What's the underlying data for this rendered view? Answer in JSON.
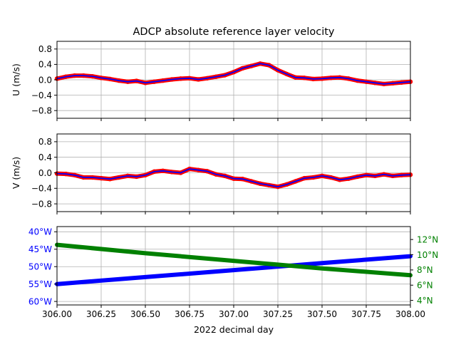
{
  "title": "ADCP absolute reference layer velocity",
  "xlabel": "2022 decimal day",
  "colors": {
    "raw": "#ff0000",
    "smooth": "#0000ff",
    "lon": "#0000ff",
    "lat": "#008000",
    "grid": "#b0b0b0",
    "axis": "#000000"
  },
  "chart_data": [
    {
      "type": "line",
      "panel": "u",
      "ylabel": "U (m/s)",
      "ylim": [
        -1.0,
        1.0
      ],
      "yticks": [
        -0.8,
        -0.4,
        0.0,
        0.4,
        0.8
      ],
      "ytick_labels": [
        "−0.8",
        "−0.4",
        "0.0",
        "0.4",
        "0.8"
      ],
      "xlim": [
        306.0,
        308.0
      ],
      "xticks": [
        306.0,
        306.25,
        306.5,
        306.75,
        307.0,
        307.25,
        307.5,
        307.75,
        308.0
      ],
      "grid": true,
      "series": [
        {
          "role": "raw",
          "style": "thick-red-markers",
          "x": [
            306.0,
            306.05,
            306.1,
            306.15,
            306.2,
            306.25,
            306.3,
            306.35,
            306.4,
            306.45,
            306.5,
            306.55,
            306.6,
            306.65,
            306.7,
            306.75,
            306.8,
            306.85,
            306.9,
            306.95,
            307.0,
            307.05,
            307.1,
            307.15,
            307.2,
            307.25,
            307.3,
            307.35,
            307.4,
            307.45,
            307.5,
            307.55,
            307.6,
            307.65,
            307.7,
            307.75,
            307.8,
            307.85,
            307.9,
            307.95,
            308.0
          ],
          "y": [
            0.03,
            0.08,
            0.11,
            0.11,
            0.09,
            0.05,
            0.02,
            -0.02,
            -0.05,
            -0.03,
            -0.08,
            -0.05,
            -0.02,
            0.01,
            0.03,
            0.04,
            0.01,
            0.04,
            0.08,
            0.12,
            0.2,
            0.3,
            0.36,
            0.42,
            0.38,
            0.25,
            0.15,
            0.06,
            0.05,
            0.02,
            0.03,
            0.05,
            0.06,
            0.03,
            -0.02,
            -0.05,
            -0.08,
            -0.11,
            -0.09,
            -0.07,
            -0.05
          ]
        },
        {
          "role": "smoothed",
          "style": "thin-blue-line",
          "x": [
            306.0,
            306.05,
            306.1,
            306.15,
            306.2,
            306.25,
            306.3,
            306.35,
            306.4,
            306.45,
            306.5,
            306.55,
            306.6,
            306.65,
            306.7,
            306.75,
            306.8,
            306.85,
            306.9,
            306.95,
            307.0,
            307.05,
            307.1,
            307.15,
            307.2,
            307.25,
            307.3,
            307.35,
            307.4,
            307.45,
            307.5,
            307.55,
            307.6,
            307.65,
            307.7,
            307.75,
            307.8,
            307.85,
            307.9,
            307.95,
            308.0
          ],
          "y": [
            0.03,
            0.08,
            0.11,
            0.11,
            0.09,
            0.05,
            0.02,
            -0.02,
            -0.05,
            -0.03,
            -0.08,
            -0.05,
            -0.02,
            0.01,
            0.03,
            0.04,
            0.01,
            0.04,
            0.08,
            0.12,
            0.2,
            0.3,
            0.36,
            0.42,
            0.38,
            0.25,
            0.15,
            0.06,
            0.05,
            0.02,
            0.03,
            0.05,
            0.06,
            0.03,
            -0.02,
            -0.05,
            -0.08,
            -0.11,
            -0.09,
            -0.07,
            -0.05
          ]
        }
      ]
    },
    {
      "type": "line",
      "panel": "v",
      "ylabel": "V (m/s)",
      "ylim": [
        -1.0,
        1.0
      ],
      "yticks": [
        -0.8,
        -0.4,
        0.0,
        0.4,
        0.8
      ],
      "ytick_labels": [
        "−0.8",
        "−0.4",
        "0.0",
        "0.4",
        "0.8"
      ],
      "xlim": [
        306.0,
        308.0
      ],
      "xticks": [
        306.0,
        306.25,
        306.5,
        306.75,
        307.0,
        307.25,
        307.5,
        307.75,
        308.0
      ],
      "grid": true,
      "series": [
        {
          "role": "raw",
          "style": "thick-red-markers",
          "x": [
            306.0,
            306.05,
            306.1,
            306.15,
            306.2,
            306.25,
            306.3,
            306.35,
            306.4,
            306.45,
            306.5,
            306.55,
            306.6,
            306.65,
            306.7,
            306.75,
            306.8,
            306.85,
            306.9,
            306.95,
            307.0,
            307.05,
            307.1,
            307.15,
            307.2,
            307.25,
            307.3,
            307.35,
            307.4,
            307.45,
            307.5,
            307.55,
            307.6,
            307.65,
            307.7,
            307.75,
            307.8,
            307.85,
            307.9,
            307.95,
            308.0
          ],
          "y": [
            -0.02,
            -0.03,
            -0.06,
            -0.12,
            -0.12,
            -0.14,
            -0.16,
            -0.12,
            -0.08,
            -0.1,
            -0.06,
            0.03,
            0.05,
            0.02,
            0.0,
            0.1,
            0.07,
            0.04,
            -0.04,
            -0.08,
            -0.15,
            -0.16,
            -0.22,
            -0.28,
            -0.32,
            -0.36,
            -0.3,
            -0.22,
            -0.14,
            -0.12,
            -0.08,
            -0.12,
            -0.18,
            -0.15,
            -0.1,
            -0.06,
            -0.08,
            -0.04,
            -0.08,
            -0.06,
            -0.05
          ]
        },
        {
          "role": "smoothed",
          "style": "thin-blue-line",
          "x": [
            306.0,
            306.05,
            306.1,
            306.15,
            306.2,
            306.25,
            306.3,
            306.35,
            306.4,
            306.45,
            306.5,
            306.55,
            306.6,
            306.65,
            306.7,
            306.75,
            306.8,
            306.85,
            306.9,
            306.95,
            307.0,
            307.05,
            307.1,
            307.15,
            307.2,
            307.25,
            307.3,
            307.35,
            307.4,
            307.45,
            307.5,
            307.55,
            307.6,
            307.65,
            307.7,
            307.75,
            307.8,
            307.85,
            307.9,
            307.95,
            308.0
          ],
          "y": [
            -0.02,
            -0.03,
            -0.06,
            -0.12,
            -0.12,
            -0.14,
            -0.16,
            -0.12,
            -0.08,
            -0.1,
            -0.06,
            0.03,
            0.05,
            0.02,
            0.0,
            0.1,
            0.07,
            0.04,
            -0.04,
            -0.08,
            -0.15,
            -0.16,
            -0.22,
            -0.28,
            -0.32,
            -0.36,
            -0.3,
            -0.22,
            -0.14,
            -0.12,
            -0.08,
            -0.12,
            -0.18,
            -0.15,
            -0.1,
            -0.06,
            -0.08,
            -0.04,
            -0.08,
            -0.06,
            -0.05
          ]
        }
      ]
    },
    {
      "type": "line",
      "panel": "position",
      "xlim": [
        306.0,
        308.0
      ],
      "xticks": [
        306.0,
        306.25,
        306.5,
        306.75,
        307.0,
        307.25,
        307.5,
        307.75,
        308.0
      ],
      "xtick_labels": [
        "306.00",
        "306.25",
        "306.50",
        "306.75",
        "307.00",
        "307.25",
        "307.50",
        "307.75",
        "308.00"
      ],
      "grid": true,
      "left_axis": {
        "quantity": "longitude",
        "ylim": [
          -61,
          -38.5
        ],
        "yticks": [
          -40,
          -45,
          -50,
          -55,
          -60
        ],
        "ytick_labels": [
          "40°W",
          "45°W",
          "50°W",
          "55°W",
          "60°W"
        ]
      },
      "right_axis": {
        "quantity": "latitude",
        "ylim": [
          3.4,
          13.7
        ],
        "yticks": [
          12,
          10,
          8,
          6,
          4
        ],
        "ytick_labels": [
          "12°N",
          "10°N",
          "8°N",
          "6°N",
          "4°N"
        ]
      },
      "series": [
        {
          "role": "longitude",
          "axis": "left",
          "x": [
            306.0,
            306.5,
            307.0,
            307.5,
            308.0
          ],
          "y": [
            -55.0,
            -53.0,
            -51.0,
            -49.0,
            -47.0
          ]
        },
        {
          "role": "latitude",
          "axis": "right",
          "x": [
            306.0,
            306.5,
            307.0,
            307.5,
            308.0
          ],
          "y": [
            11.3,
            10.2,
            9.2,
            8.2,
            7.3
          ]
        }
      ]
    }
  ]
}
